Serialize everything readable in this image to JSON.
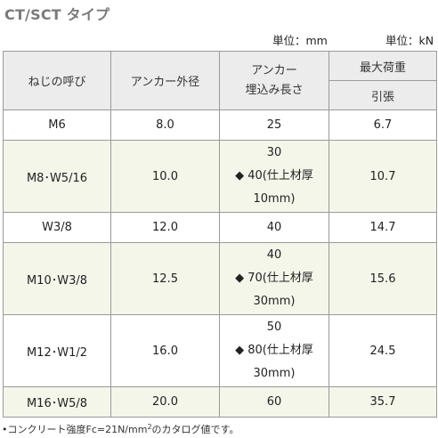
{
  "title": "CT/SCT タイプ",
  "units": {
    "length": "単位：mm",
    "force": "単位：kN"
  },
  "table": {
    "headers": {
      "screw": "ねじの呼び",
      "anchor_diameter": "アンカー外径",
      "embed_line1": "アンカー",
      "embed_line2": "埋込み長さ",
      "max_load": "最大荷重",
      "tension": "引張"
    },
    "rows": [
      {
        "screw": "M6",
        "diameter": "8.0",
        "depth": [
          "25"
        ],
        "load": "6.7"
      },
      {
        "screw": "M8･W5/16",
        "diameter": "10.0",
        "depth": [
          "30",
          "◆ 40(仕上材厚",
          "10mm)"
        ],
        "load": "10.7"
      },
      {
        "screw": "W3/8",
        "diameter": "12.0",
        "depth": [
          "40"
        ],
        "load": "14.7"
      },
      {
        "screw": "M10･W3/8",
        "diameter": "12.5",
        "depth": [
          "40",
          "◆ 70(仕上材厚",
          "30mm)"
        ],
        "load": "15.6"
      },
      {
        "screw": "M12･W1/2",
        "diameter": "16.0",
        "depth": [
          "50",
          "◆ 80(仕上材厚",
          "30mm)"
        ],
        "load": "24.5"
      },
      {
        "screw": "M16･W5/8",
        "diameter": "20.0",
        "depth": [
          "60"
        ],
        "load": "35.7"
      }
    ]
  },
  "note": {
    "prefix": "•コンクリート強度Fc=21N/mm",
    "superscript": "2",
    "suffix": "のカタログ値です。"
  }
}
